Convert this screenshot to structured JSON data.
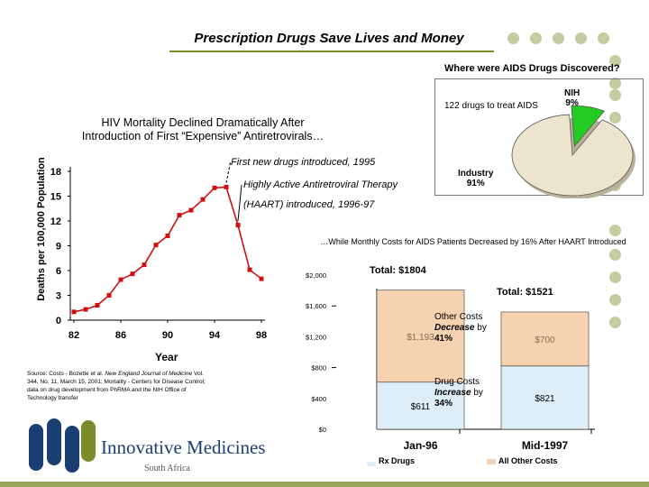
{
  "slide": {
    "title": "Prescription Drugs Save Lives and Money",
    "accent_color": "#7a8b2a",
    "dot_color": "#c5cc9f"
  },
  "pie": {
    "question": "Where were AIDS Drugs Discovered?",
    "note": "122 drugs to treat AIDS",
    "nih_name": "NIH",
    "nih_pct": "9%",
    "industry_name": "Industry",
    "industry_pct": "91%",
    "industry_color": "#ece4cc",
    "nih_color": "#22cc22"
  },
  "mortality": {
    "title_line1": "HIV Mortality Declined Dramatically After",
    "title_line2": "Introduction of First “Expensive” Antiretrovirals…",
    "ylabel": "Deaths per 100,000 Population",
    "xlabel": "Year",
    "annotation1": "First new drugs introduced, 1995",
    "annotation2a": "Highly Active Antiretroviral Therapy",
    "annotation2b": "(HAART) introduced, 1996-97"
  },
  "costs": {
    "annotation": "…While Monthly Costs for AIDS Patients Decreased by 16% After HAART Introduced",
    "total1": "Total: $1804",
    "total2": "Total: $1521",
    "other_costs_l1": "Other Costs",
    "other_costs_l2": "Decrease",
    "other_costs_l2b": " by",
    "other_costs_l3": "41%",
    "drug_costs_l1": "Drug Costs",
    "drug_costs_l2": "Increase",
    "drug_costs_l2b": " by",
    "drug_costs_l3": "34%",
    "legend_rx": "Rx Drugs",
    "legend_other": "All Other Costs",
    "rx_color": "#ddeef8",
    "other_color": "#f6d2b0"
  },
  "source": {
    "line1": "Source: Costs - Bozette et al.",
    "journal": "New England Journal of Medicine",
    "line2": " Vol. 344, No. 11, March 15, 2001; Mortality - Centers for Disease Control; data on drug development from PhRMA and the NIH Office of Technology transfer"
  },
  "logo": {
    "name": "Innovative Medicines",
    "sub": "South Africa",
    "color": "#1c3f73"
  },
  "chart_data": [
    {
      "type": "pie",
      "title": "Where were AIDS Drugs Discovered?",
      "labels": [
        "NIH",
        "Industry"
      ],
      "values": [
        9,
        91
      ]
    },
    {
      "type": "line",
      "title": "HIV Mortality Declined Dramatically After Introduction of First “Expensive” Antiretrovirals…",
      "xlabel": "Year",
      "ylabel": "Deaths per 100,000 Population",
      "x": [
        82,
        83,
        84,
        85,
        86,
        87,
        88,
        89,
        90,
        91,
        92,
        93,
        94,
        95,
        96,
        97,
        98
      ],
      "y": [
        1.0,
        1.3,
        1.8,
        3.0,
        4.9,
        5.6,
        6.7,
        9.1,
        10.2,
        12.7,
        13.3,
        14.6,
        16.0,
        16.1,
        11.5,
        6.1,
        5.0
      ],
      "xticks": [
        82,
        86,
        90,
        94,
        98
      ],
      "xtick_labels": [
        "82",
        "86",
        "90",
        "94",
        "98"
      ],
      "yticks": [
        0,
        3,
        6,
        9,
        12,
        15,
        18
      ],
      "ytick_labels": [
        "0",
        "3",
        "6",
        "9",
        "12",
        "15",
        "18"
      ],
      "xlim": [
        82,
        98
      ],
      "ylim": [
        0,
        18
      ],
      "color": "#d01010"
    },
    {
      "type": "bar",
      "stacked": true,
      "title": "Monthly Costs for AIDS Patients",
      "categories": [
        "Jan-96",
        "Mid-1997"
      ],
      "series": [
        {
          "name": "Rx Drugs",
          "values": [
            611,
            821
          ],
          "labels": [
            "$611",
            "$821"
          ]
        },
        {
          "name": "All Other Costs",
          "values": [
            1193,
            700
          ],
          "labels": [
            "$1,193",
            "$700"
          ]
        }
      ],
      "yticks": [
        0,
        400,
        800,
        1200,
        1600,
        2000
      ],
      "ytick_labels": [
        "$0",
        "$400",
        "$800",
        "$1,200",
        "$1,600",
        "$2,000"
      ],
      "ylim": [
        0,
        2000
      ]
    }
  ]
}
